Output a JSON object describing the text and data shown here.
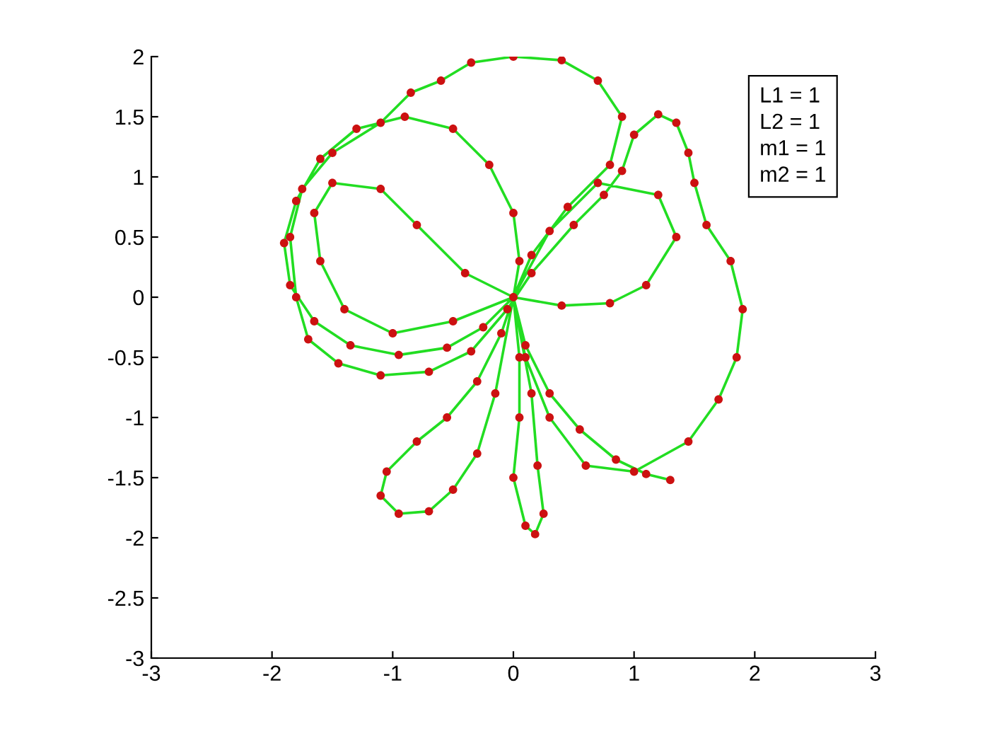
{
  "chart_data": {
    "type": "line",
    "xlim": [
      -3,
      3
    ],
    "ylim": [
      -3,
      2
    ],
    "xticks": [
      -3,
      -2,
      -1,
      0,
      1,
      2,
      3
    ],
    "yticks": [
      -3,
      -2.5,
      -2,
      -1.5,
      -1,
      -0.5,
      0,
      0.5,
      1,
      1.5,
      2
    ],
    "grid": false,
    "annotations": [
      "L1 = 1\nL2 = 1\nm1 = 1\nm2 = 1"
    ],
    "series": [
      {
        "color": "#22dd22",
        "marker": "none",
        "line_style": "solid",
        "x": [
          0,
          0.05,
          0,
          -0.2,
          -0.5,
          -0.9,
          -1.3,
          -1.6,
          -1.8,
          -1.9,
          -1.85,
          -1.65,
          -1.35,
          -0.95,
          -0.55,
          -0.25,
          0,
          -0.4,
          -0.8,
          -1.1,
          -1.5,
          -1.65,
          -1.6,
          -1.4,
          -1,
          -0.5,
          0,
          0.15,
          0.45,
          0.8,
          0.9,
          0.7,
          0.4,
          0,
          -0.35,
          -0.6,
          -0.85,
          -1.1,
          -1.5,
          -1.75,
          -1.85,
          -1.8,
          -1.7,
          -1.45,
          -1.1,
          -0.7,
          -0.35,
          -0.05,
          0.15,
          0.5,
          0.75,
          0.9,
          1,
          1.2,
          1.35,
          1.45,
          1.5,
          1.6,
          1.8,
          1.9,
          1.85,
          1.7,
          1.45,
          1,
          0.6,
          0.3,
          0.1,
          0,
          0.4,
          0.8,
          1.1,
          1.35,
          1.2,
          0.7,
          0.3,
          0,
          -0.1,
          -0.3,
          -0.55,
          -0.8,
          -1.05,
          -1.1,
          -0.95,
          -0.7,
          -0.5,
          -0.3,
          -0.15,
          0,
          0.05,
          0.05,
          0,
          0.1,
          0.18,
          0.25,
          0.2,
          0.15,
          0,
          0.1,
          0.3,
          0.55,
          0.85,
          1.1,
          1.3
        ],
        "values": [
          0,
          0.3,
          0.7,
          1.1,
          1.4,
          1.5,
          1.4,
          1.15,
          0.8,
          0.45,
          0.1,
          -0.2,
          -0.4,
          -0.48,
          -0.42,
          -0.25,
          0,
          0.2,
          0.6,
          0.9,
          0.95,
          0.7,
          0.3,
          -0.1,
          -0.3,
          -0.2,
          0,
          0.35,
          0.75,
          1.1,
          1.5,
          1.8,
          1.97,
          2,
          1.95,
          1.8,
          1.7,
          1.45,
          1.2,
          0.9,
          0.5,
          0,
          -0.35,
          -0.55,
          -0.65,
          -0.62,
          -0.45,
          -0.1,
          0.2,
          0.6,
          0.85,
          1.05,
          1.35,
          1.52,
          1.45,
          1.2,
          0.95,
          0.6,
          0.3,
          -0.1,
          -0.5,
          -0.85,
          -1.2,
          -1.45,
          -1.4,
          -1,
          -0.5,
          0,
          -0.07,
          -0.05,
          0.1,
          0.5,
          0.85,
          0.95,
          0.55,
          0,
          -0.3,
          -0.7,
          -1,
          -1.2,
          -1.45,
          -1.65,
          -1.8,
          -1.78,
          -1.6,
          -1.3,
          -0.8,
          0,
          -0.5,
          -1,
          -1.5,
          -1.9,
          -1.97,
          -1.8,
          -1.4,
          -0.8,
          0,
          -0.4,
          -0.8,
          -1.1,
          -1.35,
          -1.47,
          -1.52
        ]
      },
      {
        "type": "scatter",
        "color": "#cc1111",
        "marker": "circle",
        "x": [
          0,
          0.05,
          0,
          -0.2,
          -0.5,
          -0.9,
          -1.3,
          -1.6,
          -1.8,
          -1.9,
          -1.85,
          -1.65,
          -1.35,
          -0.95,
          -0.55,
          -0.25,
          -0.4,
          -0.8,
          -1.1,
          -1.5,
          -1.65,
          -1.6,
          -1.4,
          -1,
          -0.5,
          0.15,
          0.45,
          0.8,
          0.9,
          0.7,
          0.4,
          0,
          -0.35,
          -0.6,
          -0.85,
          -1.1,
          -1.5,
          -1.75,
          -1.85,
          -1.8,
          -1.7,
          -1.45,
          -1.1,
          -0.7,
          -0.35,
          -0.05,
          0.15,
          0.5,
          0.75,
          0.9,
          1,
          1.2,
          1.35,
          1.45,
          1.5,
          1.6,
          1.8,
          1.9,
          1.85,
          1.7,
          1.45,
          1,
          0.6,
          0.3,
          0.1,
          0.4,
          0.8,
          1.1,
          1.35,
          1.2,
          0.7,
          0.3,
          -0.1,
          -0.3,
          -0.55,
          -0.8,
          -1.05,
          -1.1,
          -0.95,
          -0.7,
          -0.5,
          -0.3,
          -0.15,
          0.05,
          0.05,
          0,
          0.1,
          0.18,
          0.25,
          0.2,
          0.15,
          0.1,
          0.3,
          0.55,
          0.85,
          1.1,
          1.3
        ],
        "values": [
          0,
          0.3,
          0.7,
          1.1,
          1.4,
          1.5,
          1.4,
          1.15,
          0.8,
          0.45,
          0.1,
          -0.2,
          -0.4,
          -0.48,
          -0.42,
          -0.25,
          0.2,
          0.6,
          0.9,
          0.95,
          0.7,
          0.3,
          -0.1,
          -0.3,
          -0.2,
          0.35,
          0.75,
          1.1,
          1.5,
          1.8,
          1.97,
          2,
          1.95,
          1.8,
          1.7,
          1.45,
          1.2,
          0.9,
          0.5,
          0,
          -0.35,
          -0.55,
          -0.65,
          -0.62,
          -0.45,
          -0.1,
          0.2,
          0.6,
          0.85,
          1.05,
          1.35,
          1.52,
          1.45,
          1.2,
          0.95,
          0.6,
          0.3,
          -0.1,
          -0.5,
          -0.85,
          -1.2,
          -1.45,
          -1.4,
          -1,
          -0.5,
          -0.07,
          -0.05,
          0.1,
          0.5,
          0.85,
          0.95,
          0.55,
          -0.3,
          -0.7,
          -1,
          -1.2,
          -1.45,
          -1.65,
          -1.8,
          -1.78,
          -1.6,
          -1.3,
          -0.8,
          -0.5,
          -1,
          -1.5,
          -1.9,
          -1.97,
          -1.8,
          -1.4,
          -0.8,
          -0.4,
          -0.8,
          -1.1,
          -1.35,
          -1.47,
          -1.52
        ]
      }
    ]
  }
}
